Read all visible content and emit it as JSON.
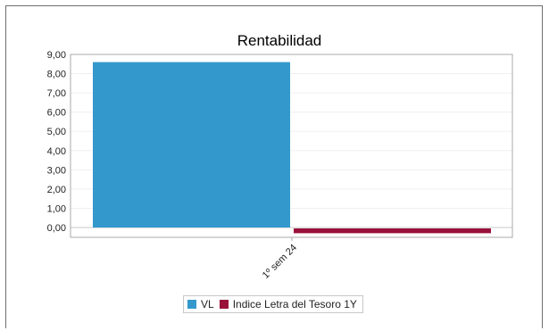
{
  "chart_data": {
    "type": "bar",
    "title": "Rentabilidad",
    "categories": [
      "1º sem 24"
    ],
    "series": [
      {
        "name": "VL",
        "values": [
          8.6
        ],
        "color": "#3399cc"
      },
      {
        "name": "Indice Letra del Tesoro 1Y",
        "values": [
          -0.25
        ],
        "color": "#99113a"
      }
    ],
    "y_ticks": [
      "0,00",
      "1,00",
      "2,00",
      "3,00",
      "4,00",
      "5,00",
      "6,00",
      "7,00",
      "8,00",
      "9,00"
    ],
    "ylim": [
      -0.5,
      9
    ],
    "grid": true,
    "legend_position": "bottom"
  }
}
